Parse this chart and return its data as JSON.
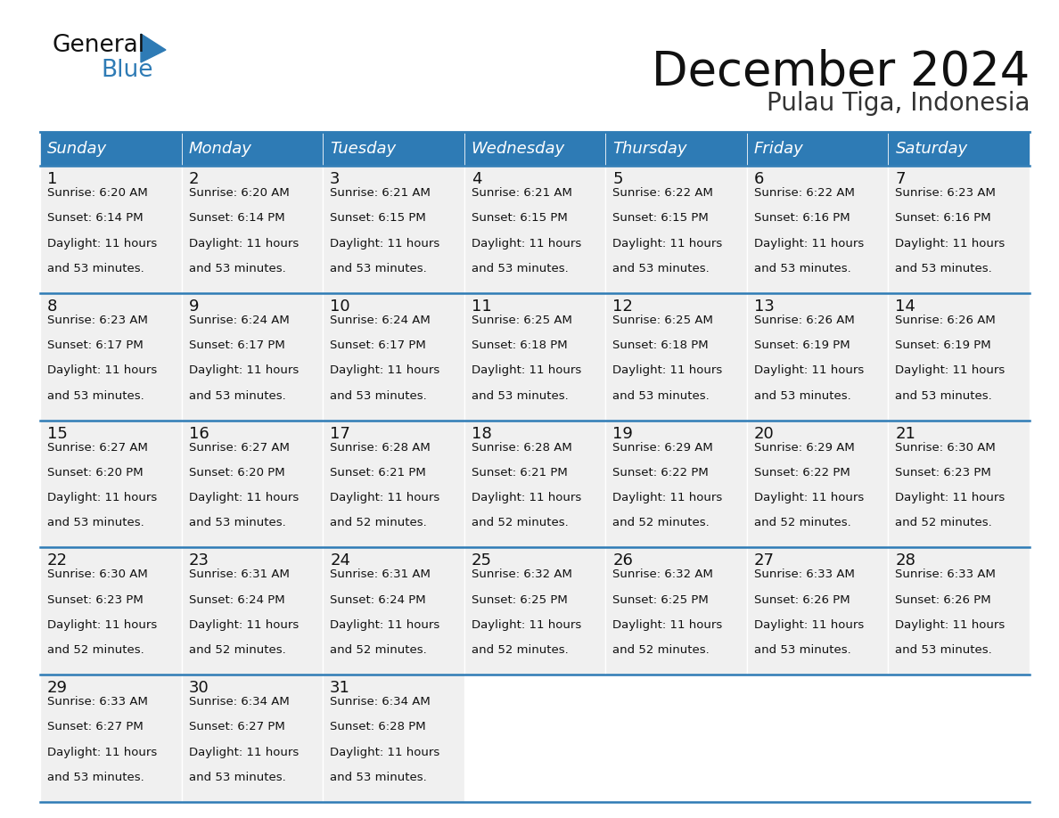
{
  "title": "December 2024",
  "subtitle": "Pulau Tiga, Indonesia",
  "header_color": "#2E7BB5",
  "header_text_color": "#FFFFFF",
  "bg_color": "#FFFFFF",
  "cell_bg_color": "#F0F0F0",
  "border_color": "#2E7BB5",
  "day_names": [
    "Sunday",
    "Monday",
    "Tuesday",
    "Wednesday",
    "Thursday",
    "Friday",
    "Saturday"
  ],
  "days": [
    {
      "day": 1,
      "col": 0,
      "row": 0,
      "sunrise": "6:20 AM",
      "sunset": "6:14 PM",
      "daylight": "11 hours and 53 minutes."
    },
    {
      "day": 2,
      "col": 1,
      "row": 0,
      "sunrise": "6:20 AM",
      "sunset": "6:14 PM",
      "daylight": "11 hours and 53 minutes."
    },
    {
      "day": 3,
      "col": 2,
      "row": 0,
      "sunrise": "6:21 AM",
      "sunset": "6:15 PM",
      "daylight": "11 hours and 53 minutes."
    },
    {
      "day": 4,
      "col": 3,
      "row": 0,
      "sunrise": "6:21 AM",
      "sunset": "6:15 PM",
      "daylight": "11 hours and 53 minutes."
    },
    {
      "day": 5,
      "col": 4,
      "row": 0,
      "sunrise": "6:22 AM",
      "sunset": "6:15 PM",
      "daylight": "11 hours and 53 minutes."
    },
    {
      "day": 6,
      "col": 5,
      "row": 0,
      "sunrise": "6:22 AM",
      "sunset": "6:16 PM",
      "daylight": "11 hours and 53 minutes."
    },
    {
      "day": 7,
      "col": 6,
      "row": 0,
      "sunrise": "6:23 AM",
      "sunset": "6:16 PM",
      "daylight": "11 hours and 53 minutes."
    },
    {
      "day": 8,
      "col": 0,
      "row": 1,
      "sunrise": "6:23 AM",
      "sunset": "6:17 PM",
      "daylight": "11 hours and 53 minutes."
    },
    {
      "day": 9,
      "col": 1,
      "row": 1,
      "sunrise": "6:24 AM",
      "sunset": "6:17 PM",
      "daylight": "11 hours and 53 minutes."
    },
    {
      "day": 10,
      "col": 2,
      "row": 1,
      "sunrise": "6:24 AM",
      "sunset": "6:17 PM",
      "daylight": "11 hours and 53 minutes."
    },
    {
      "day": 11,
      "col": 3,
      "row": 1,
      "sunrise": "6:25 AM",
      "sunset": "6:18 PM",
      "daylight": "11 hours and 53 minutes."
    },
    {
      "day": 12,
      "col": 4,
      "row": 1,
      "sunrise": "6:25 AM",
      "sunset": "6:18 PM",
      "daylight": "11 hours and 53 minutes."
    },
    {
      "day": 13,
      "col": 5,
      "row": 1,
      "sunrise": "6:26 AM",
      "sunset": "6:19 PM",
      "daylight": "11 hours and 53 minutes."
    },
    {
      "day": 14,
      "col": 6,
      "row": 1,
      "sunrise": "6:26 AM",
      "sunset": "6:19 PM",
      "daylight": "11 hours and 53 minutes."
    },
    {
      "day": 15,
      "col": 0,
      "row": 2,
      "sunrise": "6:27 AM",
      "sunset": "6:20 PM",
      "daylight": "11 hours and 53 minutes."
    },
    {
      "day": 16,
      "col": 1,
      "row": 2,
      "sunrise": "6:27 AM",
      "sunset": "6:20 PM",
      "daylight": "11 hours and 53 minutes."
    },
    {
      "day": 17,
      "col": 2,
      "row": 2,
      "sunrise": "6:28 AM",
      "sunset": "6:21 PM",
      "daylight": "11 hours and 52 minutes."
    },
    {
      "day": 18,
      "col": 3,
      "row": 2,
      "sunrise": "6:28 AM",
      "sunset": "6:21 PM",
      "daylight": "11 hours and 52 minutes."
    },
    {
      "day": 19,
      "col": 4,
      "row": 2,
      "sunrise": "6:29 AM",
      "sunset": "6:22 PM",
      "daylight": "11 hours and 52 minutes."
    },
    {
      "day": 20,
      "col": 5,
      "row": 2,
      "sunrise": "6:29 AM",
      "sunset": "6:22 PM",
      "daylight": "11 hours and 52 minutes."
    },
    {
      "day": 21,
      "col": 6,
      "row": 2,
      "sunrise": "6:30 AM",
      "sunset": "6:23 PM",
      "daylight": "11 hours and 52 minutes."
    },
    {
      "day": 22,
      "col": 0,
      "row": 3,
      "sunrise": "6:30 AM",
      "sunset": "6:23 PM",
      "daylight": "11 hours and 52 minutes."
    },
    {
      "day": 23,
      "col": 1,
      "row": 3,
      "sunrise": "6:31 AM",
      "sunset": "6:24 PM",
      "daylight": "11 hours and 52 minutes."
    },
    {
      "day": 24,
      "col": 2,
      "row": 3,
      "sunrise": "6:31 AM",
      "sunset": "6:24 PM",
      "daylight": "11 hours and 52 minutes."
    },
    {
      "day": 25,
      "col": 3,
      "row": 3,
      "sunrise": "6:32 AM",
      "sunset": "6:25 PM",
      "daylight": "11 hours and 52 minutes."
    },
    {
      "day": 26,
      "col": 4,
      "row": 3,
      "sunrise": "6:32 AM",
      "sunset": "6:25 PM",
      "daylight": "11 hours and 52 minutes."
    },
    {
      "day": 27,
      "col": 5,
      "row": 3,
      "sunrise": "6:33 AM",
      "sunset": "6:26 PM",
      "daylight": "11 hours and 53 minutes."
    },
    {
      "day": 28,
      "col": 6,
      "row": 3,
      "sunrise": "6:33 AM",
      "sunset": "6:26 PM",
      "daylight": "11 hours and 53 minutes."
    },
    {
      "day": 29,
      "col": 0,
      "row": 4,
      "sunrise": "6:33 AM",
      "sunset": "6:27 PM",
      "daylight": "11 hours and 53 minutes."
    },
    {
      "day": 30,
      "col": 1,
      "row": 4,
      "sunrise": "6:34 AM",
      "sunset": "6:27 PM",
      "daylight": "11 hours and 53 minutes."
    },
    {
      "day": 31,
      "col": 2,
      "row": 4,
      "sunrise": "6:34 AM",
      "sunset": "6:28 PM",
      "daylight": "11 hours and 53 minutes."
    }
  ],
  "title_fontsize": 38,
  "subtitle_fontsize": 20,
  "header_fontsize": 13,
  "day_num_fontsize": 13,
  "cell_text_fontsize": 9.5,
  "logo_general_fontsize": 19,
  "logo_blue_fontsize": 19
}
